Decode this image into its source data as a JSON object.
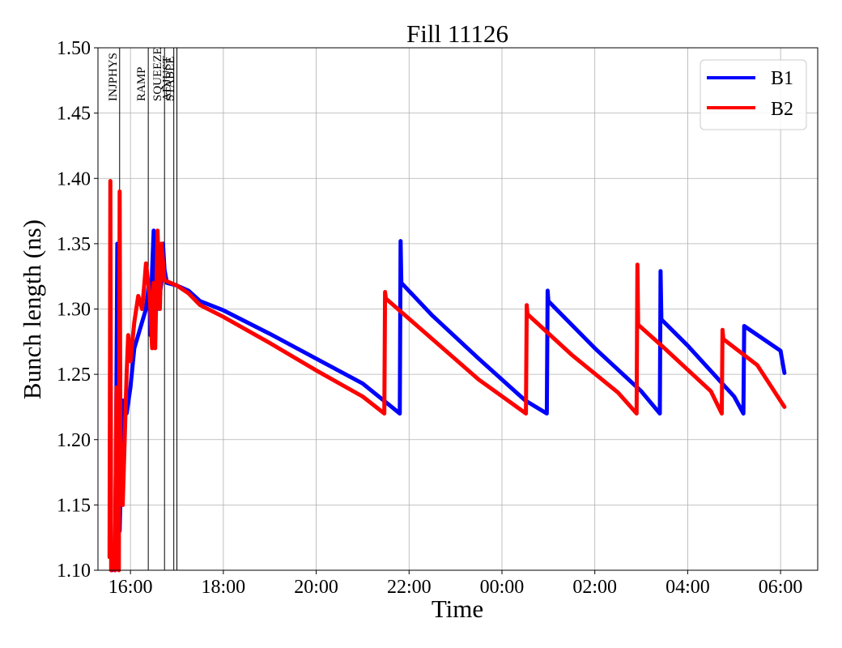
{
  "chart_data": {
    "type": "line",
    "title": "Fill 11126",
    "xlabel": "Time",
    "ylabel": "Bunch length (ns)",
    "xlim": [
      "15:18",
      "30:48"
    ],
    "ylim": [
      1.1,
      1.5
    ],
    "grid": true,
    "legend_position": "top-right",
    "x_ticks": [
      {
        "t": "16:00",
        "label": "16:00"
      },
      {
        "t": "18:00",
        "label": "18:00"
      },
      {
        "t": "20:00",
        "label": "20:00"
      },
      {
        "t": "22:00",
        "label": "22:00"
      },
      {
        "t": "24:00",
        "label": "00:00"
      },
      {
        "t": "26:00",
        "label": "02:00"
      },
      {
        "t": "28:00",
        "label": "04:00"
      },
      {
        "t": "30:00",
        "label": "06:00"
      }
    ],
    "y_ticks": [
      "1.10",
      "1.15",
      "1.20",
      "1.25",
      "1.30",
      "1.35",
      "1.40",
      "1.45",
      "1.50"
    ],
    "phases": [
      {
        "name": "INJPHYS",
        "t": "15:46"
      },
      {
        "name": "RAMP",
        "t": "16:23"
      },
      {
        "name": "SQUEEZE",
        "t": "16:44"
      },
      {
        "name": "ADJUST",
        "t": "16:56"
      },
      {
        "name": "STABLE",
        "t": "17:00"
      }
    ],
    "series": [
      {
        "name": "B1",
        "color": "#0000ff",
        "points": [
          [
            "15:36",
            1.1
          ],
          [
            "15:37",
            1.12
          ],
          [
            "15:38",
            1.11
          ],
          [
            "15:40",
            1.1
          ],
          [
            "15:42",
            1.25
          ],
          [
            "15:43",
            1.35
          ],
          [
            "15:44",
            1.2
          ],
          [
            "15:46",
            1.13
          ],
          [
            "15:50",
            1.23
          ],
          [
            "15:55",
            1.22
          ],
          [
            "16:00",
            1.24
          ],
          [
            "16:05",
            1.27
          ],
          [
            "16:10",
            1.28
          ],
          [
            "16:15",
            1.29
          ],
          [
            "16:20",
            1.3
          ],
          [
            "16:24",
            1.32
          ],
          [
            "16:26",
            1.28
          ],
          [
            "16:28",
            1.33
          ],
          [
            "16:30",
            1.36
          ],
          [
            "16:32",
            1.32
          ],
          [
            "16:35",
            1.3
          ],
          [
            "16:40",
            1.32
          ],
          [
            "16:42",
            1.35
          ],
          [
            "16:44",
            1.33
          ],
          [
            "16:47",
            1.32
          ],
          [
            "17:00",
            1.318
          ],
          [
            "17:15",
            1.314
          ],
          [
            "17:30",
            1.306
          ],
          [
            "18:00",
            1.299
          ],
          [
            "19:00",
            1.281
          ],
          [
            "20:00",
            1.262
          ],
          [
            "21:00",
            1.243
          ],
          [
            "21:48",
            1.22
          ],
          [
            "21:49",
            1.352
          ],
          [
            "21:50",
            1.32
          ],
          [
            "22:30",
            1.295
          ],
          [
            "23:30",
            1.262
          ],
          [
            "24:30",
            1.23
          ],
          [
            "24:58",
            1.22
          ],
          [
            "24:59",
            1.314
          ],
          [
            "25:00",
            1.306
          ],
          [
            "26:00",
            1.27
          ],
          [
            "27:00",
            1.237
          ],
          [
            "27:24",
            1.22
          ],
          [
            "27:25",
            1.329
          ],
          [
            "27:26",
            1.292
          ],
          [
            "28:00",
            1.272
          ],
          [
            "29:00",
            1.233
          ],
          [
            "29:12",
            1.22
          ],
          [
            "29:13",
            1.287
          ],
          [
            "30:00",
            1.268
          ],
          [
            "30:05",
            1.251
          ]
        ]
      },
      {
        "name": "B2",
        "color": "#ff0000",
        "points": [
          [
            "15:33",
            1.11
          ],
          [
            "15:34",
            1.398
          ],
          [
            "15:35",
            1.1
          ],
          [
            "15:37",
            1.12
          ],
          [
            "15:40",
            1.1
          ],
          [
            "15:42",
            1.24
          ],
          [
            "15:45",
            1.1
          ],
          [
            "15:46",
            1.39
          ],
          [
            "15:47",
            1.2
          ],
          [
            "15:50",
            1.15
          ],
          [
            "15:55",
            1.25
          ],
          [
            "15:57",
            1.28
          ],
          [
            "16:00",
            1.26
          ],
          [
            "16:05",
            1.29
          ],
          [
            "16:10",
            1.31
          ],
          [
            "16:15",
            1.3
          ],
          [
            "16:18",
            1.32
          ],
          [
            "16:20",
            1.335
          ],
          [
            "16:25",
            1.31
          ],
          [
            "16:28",
            1.27
          ],
          [
            "16:30",
            1.32
          ],
          [
            "16:32",
            1.27
          ],
          [
            "16:35",
            1.36
          ],
          [
            "16:38",
            1.3
          ],
          [
            "16:40",
            1.35
          ],
          [
            "16:44",
            1.322
          ],
          [
            "17:00",
            1.318
          ],
          [
            "17:15",
            1.312
          ],
          [
            "17:30",
            1.303
          ],
          [
            "18:00",
            1.294
          ],
          [
            "19:00",
            1.274
          ],
          [
            "20:00",
            1.253
          ],
          [
            "21:00",
            1.233
          ],
          [
            "21:28",
            1.22
          ],
          [
            "21:29",
            1.313
          ],
          [
            "21:30",
            1.308
          ],
          [
            "22:30",
            1.277
          ],
          [
            "23:30",
            1.246
          ],
          [
            "24:31",
            1.22
          ],
          [
            "24:32",
            1.303
          ],
          [
            "24:33",
            1.296
          ],
          [
            "25:30",
            1.265
          ],
          [
            "26:30",
            1.236
          ],
          [
            "26:54",
            1.22
          ],
          [
            "26:55",
            1.334
          ],
          [
            "26:56",
            1.288
          ],
          [
            "27:30",
            1.27
          ],
          [
            "28:30",
            1.237
          ],
          [
            "28:44",
            1.22
          ],
          [
            "28:45",
            1.284
          ],
          [
            "28:46",
            1.277
          ],
          [
            "29:30",
            1.257
          ],
          [
            "30:05",
            1.225
          ]
        ]
      }
    ]
  }
}
